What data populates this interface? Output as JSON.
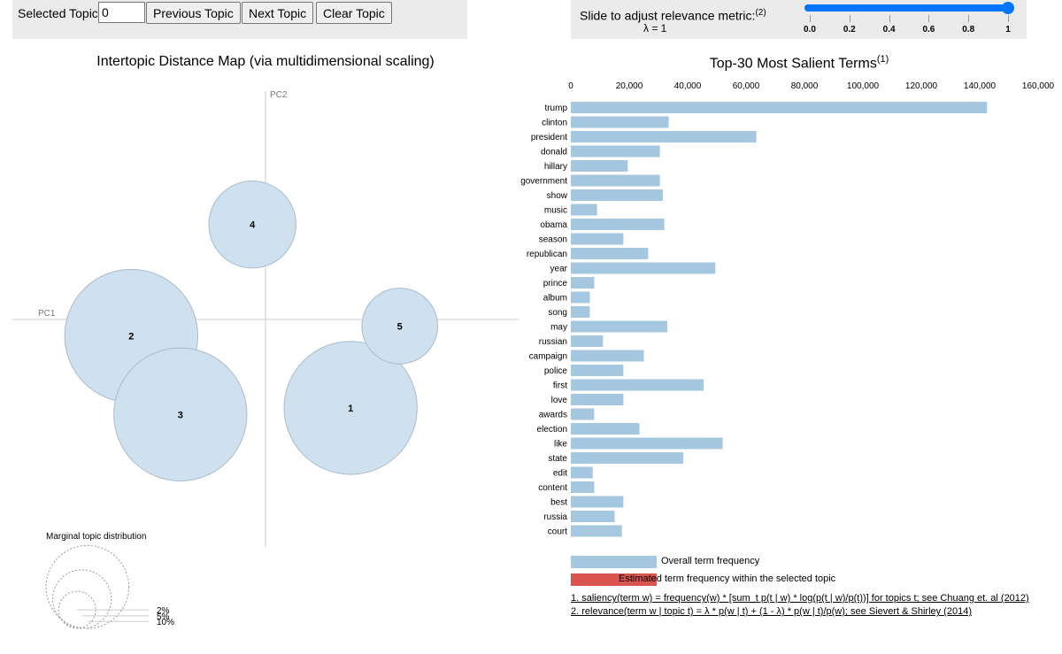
{
  "controls": {
    "selected_topic_label": "Selected Topic:",
    "selected_topic_value": "0",
    "prev_label": "Previous Topic",
    "next_label": "Next Topic",
    "clear_label": "Clear Topic",
    "slider_label": "Slide to adjust relevance metric:",
    "slider_note": "(2)",
    "lambda_label": "λ = 1",
    "lambda_value": 1,
    "slider_ticks": [
      "0.0",
      "0.2",
      "0.4",
      "0.6",
      "0.8",
      "1"
    ]
  },
  "left_title": "Intertopic Distance Map (via multidimensional scaling)",
  "right_title": "Top-30 Most Salient Terms",
  "right_title_note": "(1)",
  "marginal_title": "Marginal topic distribution",
  "marginal_labels": [
    "2%",
    "5%",
    "10%"
  ],
  "legend": {
    "overall": "Overall term frequency",
    "estimated": "Estimated term frequency within the selected topic"
  },
  "footnotes": {
    "saliency": "1. saliency(term w) = frequency(w) * [sum_t p(t | w) * log(p(t | w)/p(t))] for topics t; see Chuang et. al (2012)",
    "relevance": "2. relevance(term w | topic t) = λ * p(w | t) + (1 - λ) * p(w | t)/p(w); see Sievert & Shirley (2014)"
  },
  "colors": {
    "bar": "#a6c7e0",
    "bubble": "#cfe0ee",
    "bubble_stroke": "#a9bccc",
    "estimated": "#d9534f",
    "accent": "#0075ff"
  },
  "chart_data": [
    {
      "type": "scatter",
      "title": "Intertopic Distance Map (via multidimensional scaling)",
      "xlabel": "PC1",
      "ylabel": "PC2",
      "xlim": [
        -0.5,
        0.5
      ],
      "ylim": [
        -0.5,
        0.5
      ],
      "topics": [
        {
          "id": "1",
          "x": 0.26,
          "y": -0.27,
          "share": 10.5
        },
        {
          "id": "2",
          "x": -0.41,
          "y": -0.05,
          "share": 10.5
        },
        {
          "id": "3",
          "x": -0.26,
          "y": -0.29,
          "share": 10.5
        },
        {
          "id": "4",
          "x": -0.04,
          "y": 0.29,
          "share": 4.5
        },
        {
          "id": "5",
          "x": 0.41,
          "y": -0.02,
          "share": 3.4
        }
      ]
    },
    {
      "type": "bar",
      "title": "Top-30 Most Salient Terms",
      "categories": [
        "trump",
        "clinton",
        "president",
        "donald",
        "hillary",
        "government",
        "show",
        "music",
        "obama",
        "season",
        "republican",
        "year",
        "prince",
        "album",
        "song",
        "may",
        "russian",
        "campaign",
        "police",
        "first",
        "love",
        "awards",
        "election",
        "like",
        "state",
        "edit",
        "content",
        "best",
        "russia",
        "court"
      ],
      "values": [
        142500,
        33500,
        63500,
        30500,
        19500,
        30500,
        31500,
        9000,
        32000,
        18000,
        26500,
        49500,
        8000,
        6500,
        6500,
        33000,
        11000,
        25000,
        18000,
        45500,
        18000,
        8000,
        23500,
        52000,
        38500,
        7500,
        8000,
        18000,
        15000,
        17500
      ],
      "xlim": [
        0,
        160000
      ],
      "xticks": [
        "0",
        "20,000",
        "40,000",
        "60,000",
        "80,000",
        "100,000",
        "120,000",
        "140,000",
        "160,000"
      ],
      "tick_values": [
        0,
        20000,
        40000,
        60000,
        80000,
        100000,
        120000,
        140000,
        160000
      ]
    }
  ]
}
